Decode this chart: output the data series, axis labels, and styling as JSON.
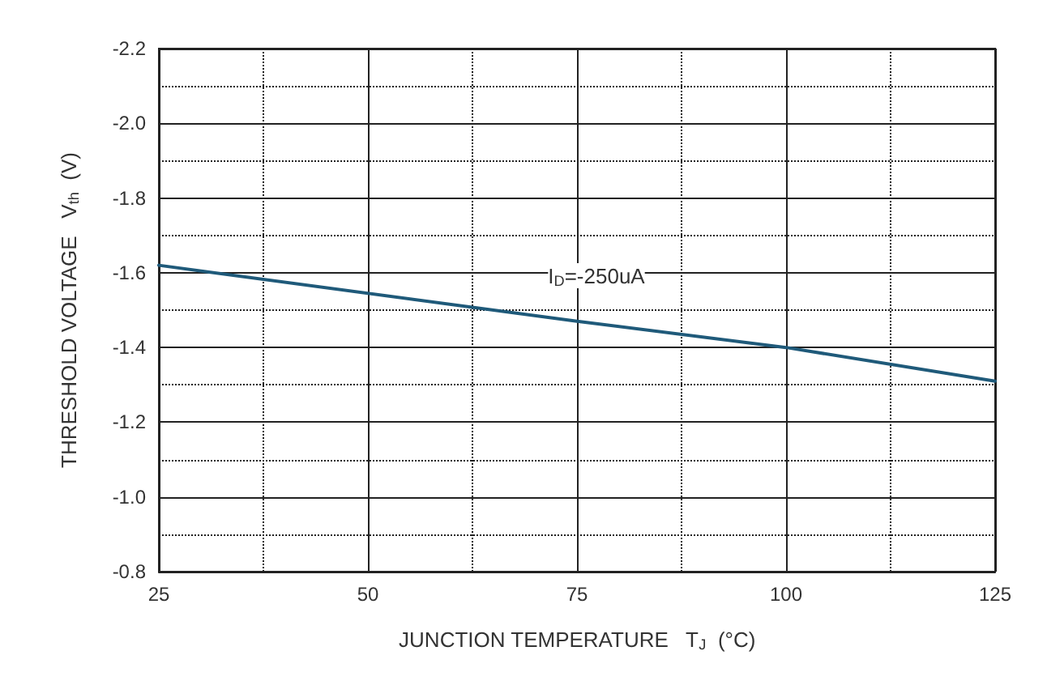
{
  "chart_data": {
    "type": "line",
    "xlabel": "JUNCTION TEMPERATURE   T$_{J}$  (°C)",
    "ylabel": "THRESHOLD VOLTAGE   V$_{th}$  (V)",
    "x": [
      25,
      75,
      100,
      125
    ],
    "series": [
      {
        "color": "#1f5a7a",
        "values": [
          -1.62,
          -1.47,
          -1.4,
          -1.31
        ]
      }
    ],
    "xlim": [
      25,
      125
    ],
    "xticks": [
      25,
      50,
      75,
      100,
      125
    ],
    "ylim": [
      -0.8,
      -2.2
    ],
    "yticks": [
      {
        "value": -0.8,
        "label": "-0.8"
      },
      {
        "value": -1,
        "label": "-1.0"
      },
      {
        "value": -1.2,
        "label": "-1.2"
      },
      {
        "value": -1.4,
        "label": "-1.4"
      },
      {
        "value": -1.6,
        "label": "-1.6"
      },
      {
        "value": -1.8,
        "label": "-1.8"
      },
      {
        "value": -2,
        "label": "-2.0"
      },
      {
        "value": -2.2,
        "label": "-2.2"
      }
    ],
    "grid": true,
    "marker": "none",
    "line_style": "solid",
    "annotations": [
      "I$_{D}$=-250uA"
    ]
  }
}
